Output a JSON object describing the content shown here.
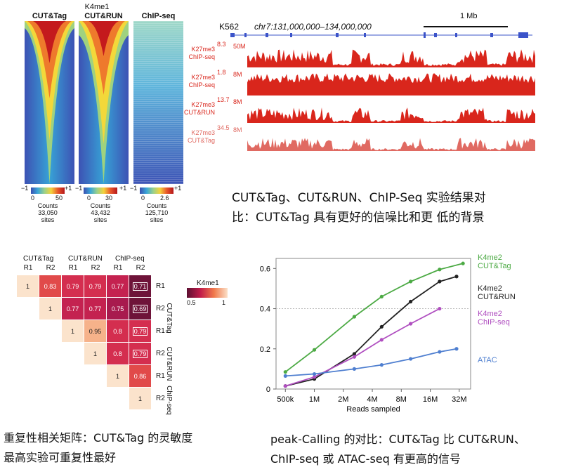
{
  "heatmaps": {
    "title": "K4me1",
    "columns": [
      {
        "name": "CUT&Tag",
        "scale_min": "0",
        "scale_max": "50",
        "counts_label": "Counts",
        "sites": "33,050",
        "sites_label": "sites"
      },
      {
        "name": "CUT&RUN",
        "scale_min": "0",
        "scale_max": "30",
        "counts_label": "Counts",
        "sites": "43,432",
        "sites_label": "sites"
      },
      {
        "name": "ChIP-seq",
        "scale_min": "0",
        "scale_max": "2.6",
        "counts_label": "Counts",
        "sites": "125,710",
        "sites_label": "sites"
      }
    ],
    "axis_left": "−1",
    "axis_right": "+1"
  },
  "browser": {
    "cell_line": "K562",
    "locus": "chr7:131,000,000–134,000,000",
    "scale_bar": "1 Mb",
    "tracks": [
      {
        "label1": "K27me3",
        "label2": "ChIP-seq",
        "max": "8.3",
        "depth": "50M",
        "color": "#d9261c"
      },
      {
        "label1": "K27me3",
        "label2": "ChIP-seq",
        "max": "1.8",
        "depth": "8M",
        "color": "#d9261c"
      },
      {
        "label1": "K27me3",
        "label2": "CUT&RUN",
        "max": "13.7",
        "depth": "8M",
        "color": "#d9261c"
      },
      {
        "label1": "K27me3",
        "label2": "CUT&Tag",
        "max": "34.5",
        "depth": "8M",
        "color": "#e06a62"
      }
    ]
  },
  "caption_top": [
    "CUT&Tag、CUT&RUN、ChIP-Seq 实验结果对",
    "比：CUT&Tag 具有更好的信噪比和更 低的背景"
  ],
  "corr": {
    "groups": [
      "CUT&Tag",
      "CUT&RUN",
      "ChIP-seq"
    ],
    "reps": [
      "R1",
      "R2",
      "R1",
      "R2",
      "R1",
      "R2"
    ],
    "legend_title": "K4me1",
    "legend_min": "0.5",
    "legend_max": "1",
    "rows": [
      [
        "1",
        "0.83",
        "0.79",
        "0.79",
        "0.77",
        "0.71"
      ],
      [
        "1",
        "0.77",
        "0.77",
        "0.75",
        "0.69"
      ],
      [
        "1",
        "0.95",
        "0.8",
        "0.79"
      ],
      [
        "1",
        "0.8",
        "0.79"
      ],
      [
        "1",
        "0.86"
      ],
      [
        "1"
      ]
    ]
  },
  "caption_left": [
    "重复性相关矩阵：CUT&Tag 的灵敏度",
    "最高实验可重复性最好"
  ],
  "chart_data": {
    "type": "line",
    "xlabel": "Reads sampled",
    "x": [
      "500k",
      "1M",
      "2M",
      "4M",
      "8M",
      "16M",
      "32M"
    ],
    "x_log_values": [
      500000,
      1000000,
      2000000,
      4000000,
      8000000,
      16000000,
      32000000
    ],
    "ylim": [
      0,
      0.65
    ],
    "yticks": [
      "0",
      "0.2",
      "0.4",
      "0.6"
    ],
    "series": [
      {
        "name": "K4me2 CUT&Tag",
        "line1": "K4me2",
        "line2": "CUT&Tag",
        "color": "#4caa44",
        "x": [
          500000,
          1000000,
          2600000,
          5000000,
          10000000,
          20000000,
          35000000
        ],
        "values": [
          0.085,
          0.195,
          0.36,
          0.46,
          0.535,
          0.595,
          0.625
        ]
      },
      {
        "name": "K4me2 CUT&RUN",
        "line1": "K4me2",
        "line2": "CUT&RUN",
        "color": "#222222",
        "x": [
          500000,
          1000000,
          2600000,
          5000000,
          10000000,
          20000000,
          30000000
        ],
        "values": [
          0.015,
          0.05,
          0.175,
          0.31,
          0.435,
          0.535,
          0.56
        ]
      },
      {
        "name": "K4me2 ChIP-seq",
        "line1": "K4me2",
        "line2": "ChIP-seq",
        "color": "#b04fc0",
        "x": [
          500000,
          1000000,
          2600000,
          5000000,
          10000000,
          20000000
        ],
        "values": [
          0.015,
          0.06,
          0.16,
          0.245,
          0.325,
          0.4
        ]
      },
      {
        "name": "ATAC",
        "line1": "ATAC",
        "line2": "",
        "color": "#4f7fd0",
        "x": [
          500000,
          1000000,
          2600000,
          5000000,
          10000000,
          20000000,
          30000000
        ],
        "values": [
          0.065,
          0.075,
          0.1,
          0.12,
          0.15,
          0.185,
          0.2
        ]
      }
    ]
  },
  "caption_right": [
    "peak-Calling 的对比：CUT&Tag 比 CUT&RUN、",
    "ChIP-seq 或 ATAC-seq 有更高的信号"
  ]
}
